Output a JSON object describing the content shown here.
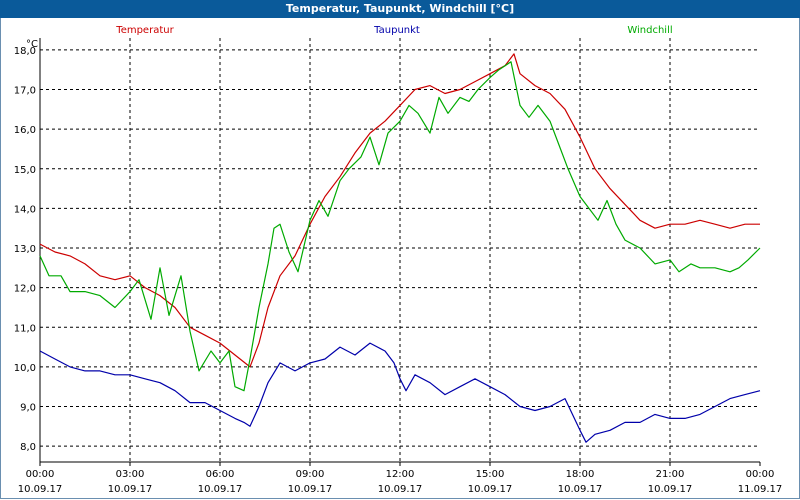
{
  "window": {
    "title": "Temperatur, Taupunkt, Windchill [°C]"
  },
  "chart_data": {
    "type": "line",
    "title": "Temperatur, Taupunkt, Windchill [°C]",
    "ylabel": "°C",
    "ylim": [
      7.6,
      18.3
    ],
    "xlim": [
      0,
      24
    ],
    "grid": true,
    "legend": "top",
    "yticks": [
      "8,0",
      "9,0",
      "10,0",
      "11,0",
      "12,0",
      "13,0",
      "14,0",
      "15,0",
      "16,0",
      "17,0",
      "18,0"
    ],
    "ytick_values": [
      8,
      9,
      10,
      11,
      12,
      13,
      14,
      15,
      16,
      17,
      18
    ],
    "xticks": [
      {
        "time": "00:00",
        "date": "10.09.17"
      },
      {
        "time": "03:00",
        "date": "10.09.17"
      },
      {
        "time": "06:00",
        "date": "10.09.17"
      },
      {
        "time": "09:00",
        "date": "10.09.17"
      },
      {
        "time": "12:00",
        "date": "10.09.17"
      },
      {
        "time": "15:00",
        "date": "10.09.17"
      },
      {
        "time": "18:00",
        "date": "10.09.17"
      },
      {
        "time": "21:00",
        "date": "10.09.17"
      },
      {
        "time": "00:00",
        "date": "11.09.17"
      }
    ],
    "series": [
      {
        "name": "Temperatur",
        "color": "#cc0000",
        "points": [
          [
            0,
            13.1
          ],
          [
            0.5,
            12.9
          ],
          [
            1,
            12.8
          ],
          [
            1.5,
            12.6
          ],
          [
            2,
            12.3
          ],
          [
            2.5,
            12.2
          ],
          [
            3,
            12.3
          ],
          [
            3.5,
            12.0
          ],
          [
            4,
            11.8
          ],
          [
            4.5,
            11.5
          ],
          [
            5,
            11.0
          ],
          [
            5.5,
            10.8
          ],
          [
            6,
            10.6
          ],
          [
            6.5,
            10.3
          ],
          [
            7,
            10.0
          ],
          [
            7.3,
            10.6
          ],
          [
            7.6,
            11.5
          ],
          [
            8,
            12.3
          ],
          [
            8.5,
            12.8
          ],
          [
            9,
            13.6
          ],
          [
            9.5,
            14.3
          ],
          [
            10,
            14.8
          ],
          [
            10.5,
            15.4
          ],
          [
            11,
            15.9
          ],
          [
            11.5,
            16.2
          ],
          [
            12,
            16.6
          ],
          [
            12.5,
            17.0
          ],
          [
            13,
            17.1
          ],
          [
            13.5,
            16.9
          ],
          [
            14,
            17.0
          ],
          [
            14.5,
            17.2
          ],
          [
            15,
            17.4
          ],
          [
            15.5,
            17.6
          ],
          [
            15.8,
            17.9
          ],
          [
            16,
            17.4
          ],
          [
            16.5,
            17.1
          ],
          [
            17,
            16.9
          ],
          [
            17.5,
            16.5
          ],
          [
            18,
            15.8
          ],
          [
            18.5,
            15.0
          ],
          [
            19,
            14.5
          ],
          [
            19.5,
            14.1
          ],
          [
            20,
            13.7
          ],
          [
            20.5,
            13.5
          ],
          [
            21,
            13.6
          ],
          [
            21.5,
            13.6
          ],
          [
            22,
            13.7
          ],
          [
            22.5,
            13.6
          ],
          [
            23,
            13.5
          ],
          [
            23.5,
            13.6
          ],
          [
            24,
            13.6
          ]
        ]
      },
      {
        "name": "Taupunkt",
        "color": "#0000aa",
        "points": [
          [
            0,
            10.4
          ],
          [
            0.5,
            10.2
          ],
          [
            1,
            10.0
          ],
          [
            1.5,
            9.9
          ],
          [
            2,
            9.9
          ],
          [
            2.5,
            9.8
          ],
          [
            3,
            9.8
          ],
          [
            3.5,
            9.7
          ],
          [
            4,
            9.6
          ],
          [
            4.5,
            9.4
          ],
          [
            5,
            9.1
          ],
          [
            5.5,
            9.1
          ],
          [
            6,
            8.9
          ],
          [
            6.5,
            8.7
          ],
          [
            6.8,
            8.6
          ],
          [
            7,
            8.5
          ],
          [
            7.3,
            9.0
          ],
          [
            7.6,
            9.6
          ],
          [
            8,
            10.1
          ],
          [
            8.5,
            9.9
          ],
          [
            9,
            10.1
          ],
          [
            9.5,
            10.2
          ],
          [
            10,
            10.5
          ],
          [
            10.5,
            10.3
          ],
          [
            11,
            10.6
          ],
          [
            11.5,
            10.4
          ],
          [
            11.8,
            10.1
          ],
          [
            12,
            9.7
          ],
          [
            12.2,
            9.4
          ],
          [
            12.5,
            9.8
          ],
          [
            13,
            9.6
          ],
          [
            13.5,
            9.3
          ],
          [
            14,
            9.5
          ],
          [
            14.5,
            9.7
          ],
          [
            15,
            9.5
          ],
          [
            15.5,
            9.3
          ],
          [
            16,
            9.0
          ],
          [
            16.5,
            8.9
          ],
          [
            17,
            9.0
          ],
          [
            17.5,
            9.2
          ],
          [
            18,
            8.4
          ],
          [
            18.2,
            8.1
          ],
          [
            18.5,
            8.3
          ],
          [
            19,
            8.4
          ],
          [
            19.5,
            8.6
          ],
          [
            20,
            8.6
          ],
          [
            20.5,
            8.8
          ],
          [
            21,
            8.7
          ],
          [
            21.5,
            8.7
          ],
          [
            22,
            8.8
          ],
          [
            22.5,
            9.0
          ],
          [
            23,
            9.2
          ],
          [
            23.5,
            9.3
          ],
          [
            24,
            9.4
          ]
        ]
      },
      {
        "name": "Windchill",
        "color": "#00aa00",
        "points": [
          [
            0,
            12.8
          ],
          [
            0.3,
            12.3
          ],
          [
            0.7,
            12.3
          ],
          [
            1,
            11.9
          ],
          [
            1.5,
            11.9
          ],
          [
            2,
            11.8
          ],
          [
            2.5,
            11.5
          ],
          [
            3,
            11.9
          ],
          [
            3.3,
            12.2
          ],
          [
            3.7,
            11.2
          ],
          [
            4,
            12.5
          ],
          [
            4.3,
            11.3
          ],
          [
            4.7,
            12.3
          ],
          [
            5,
            10.9
          ],
          [
            5.3,
            9.9
          ],
          [
            5.7,
            10.4
          ],
          [
            6,
            10.1
          ],
          [
            6.3,
            10.4
          ],
          [
            6.5,
            9.5
          ],
          [
            6.8,
            9.4
          ],
          [
            7,
            10.2
          ],
          [
            7.3,
            11.5
          ],
          [
            7.6,
            12.6
          ],
          [
            7.8,
            13.5
          ],
          [
            8,
            13.6
          ],
          [
            8.3,
            12.9
          ],
          [
            8.6,
            12.4
          ],
          [
            9,
            13.7
          ],
          [
            9.3,
            14.2
          ],
          [
            9.6,
            13.8
          ],
          [
            10,
            14.7
          ],
          [
            10.3,
            15.0
          ],
          [
            10.7,
            15.3
          ],
          [
            11,
            15.8
          ],
          [
            11.3,
            15.1
          ],
          [
            11.6,
            15.9
          ],
          [
            12,
            16.2
          ],
          [
            12.3,
            16.6
          ],
          [
            12.6,
            16.4
          ],
          [
            13,
            15.9
          ],
          [
            13.3,
            16.8
          ],
          [
            13.6,
            16.4
          ],
          [
            14,
            16.8
          ],
          [
            14.3,
            16.7
          ],
          [
            14.6,
            17.0
          ],
          [
            15,
            17.3
          ],
          [
            15.3,
            17.5
          ],
          [
            15.7,
            17.7
          ],
          [
            16,
            16.6
          ],
          [
            16.3,
            16.3
          ],
          [
            16.6,
            16.6
          ],
          [
            17,
            16.2
          ],
          [
            17.3,
            15.6
          ],
          [
            17.6,
            15.0
          ],
          [
            18,
            14.3
          ],
          [
            18.3,
            14.0
          ],
          [
            18.6,
            13.7
          ],
          [
            18.9,
            14.2
          ],
          [
            19.2,
            13.6
          ],
          [
            19.5,
            13.2
          ],
          [
            20,
            13.0
          ],
          [
            20.5,
            12.6
          ],
          [
            21,
            12.7
          ],
          [
            21.3,
            12.4
          ],
          [
            21.7,
            12.6
          ],
          [
            22,
            12.5
          ],
          [
            22.5,
            12.5
          ],
          [
            23,
            12.4
          ],
          [
            23.3,
            12.5
          ],
          [
            23.6,
            12.7
          ],
          [
            24,
            13.0
          ]
        ]
      }
    ]
  }
}
